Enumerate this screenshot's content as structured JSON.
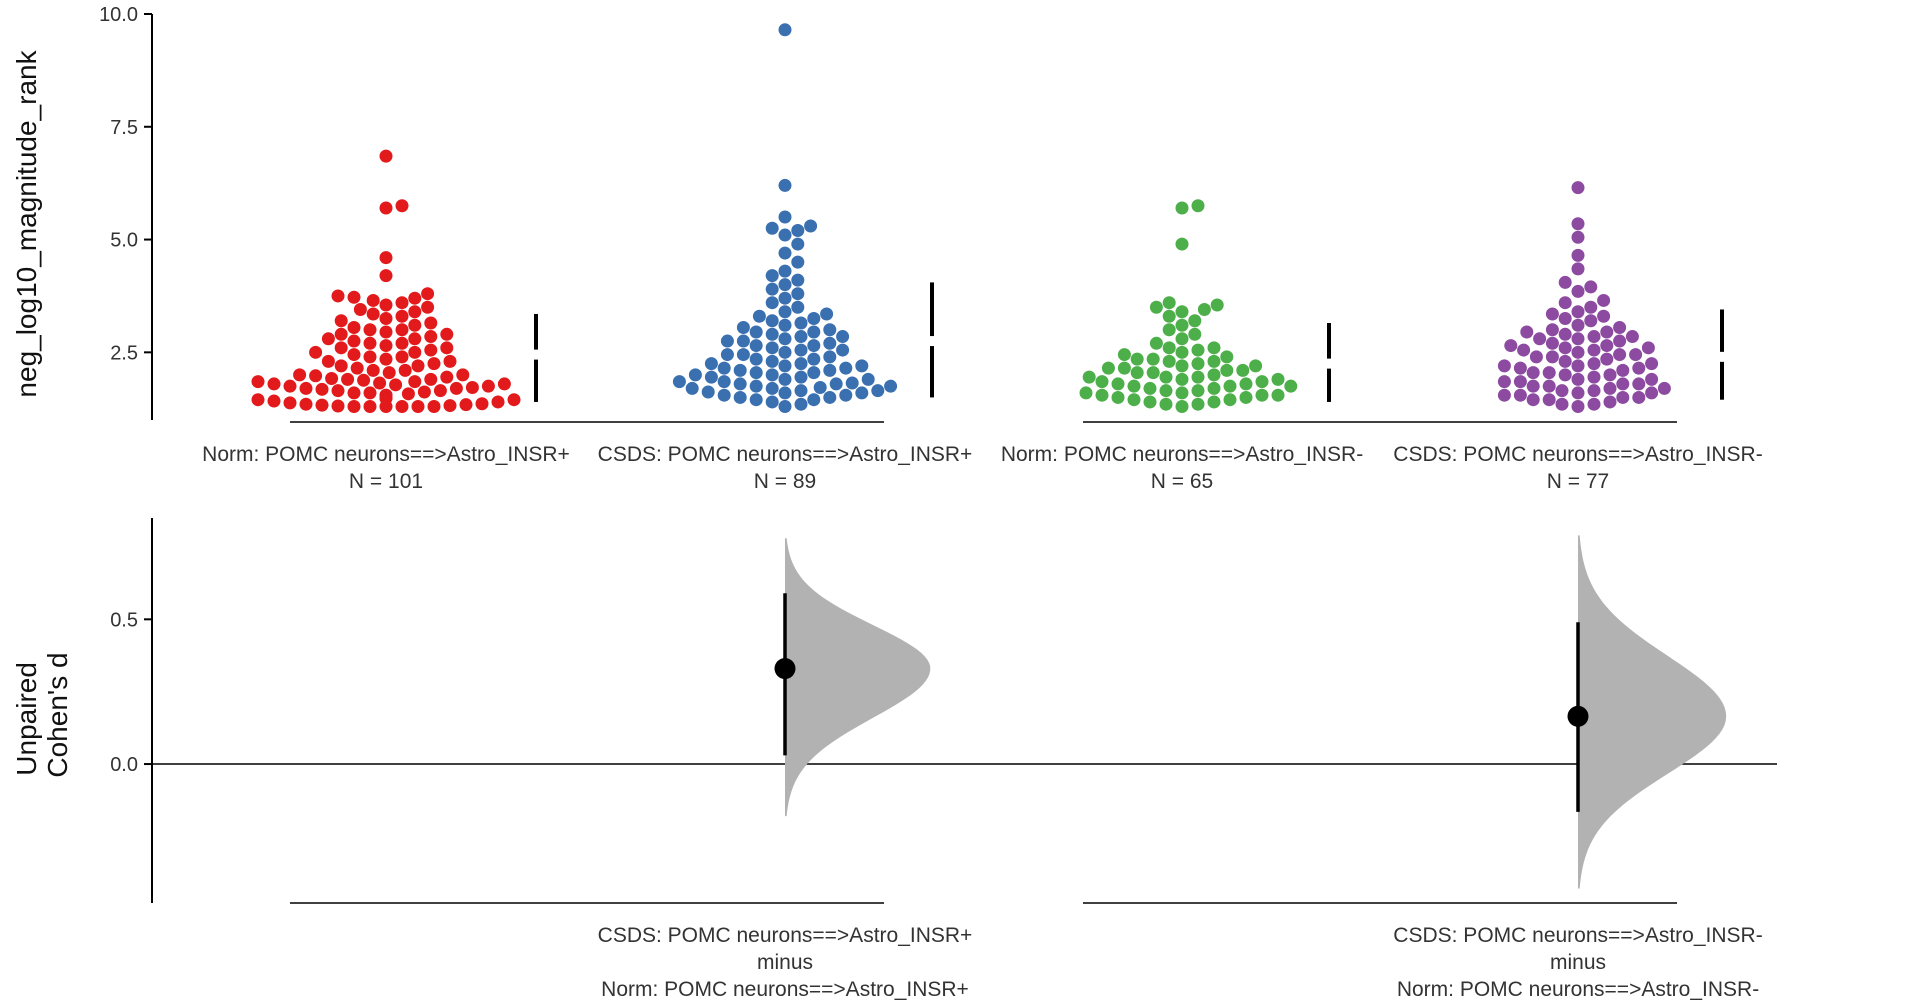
{
  "chart_data": [
    {
      "type": "scatter",
      "subtype": "swarm",
      "ylabel": "neg_log10_magnitude_rank",
      "ylim": [
        1.0,
        10.0
      ],
      "yticks": [
        2.5,
        5.0,
        7.5,
        10.0
      ],
      "ytick_labels": [
        "2.5",
        "5.0",
        "7.5",
        "10.0"
      ],
      "groups": [
        {
          "label": "Norm: POMC neurons==>Astro_INSR+",
          "n_label": "N = 101",
          "n": 101,
          "color": "#e31a1c",
          "mean": 2.45,
          "sd_low": 1.4,
          "sd_high": 3.35,
          "values": [
            6.85,
            5.75,
            5.7,
            4.6,
            4.2,
            3.8,
            3.75,
            3.72,
            3.7,
            3.65,
            3.6,
            3.55,
            3.5,
            3.45,
            3.4,
            3.35,
            3.3,
            3.25,
            3.2,
            3.15,
            3.1,
            3.05,
            3.0,
            2.95,
            2.9,
            2.85,
            2.8,
            2.75,
            2.7,
            2.65,
            2.6,
            2.55,
            2.5,
            2.45,
            2.4,
            2.35,
            2.3,
            2.25,
            2.2,
            2.15,
            2.1,
            2.05,
            2.0,
            1.98,
            1.95,
            1.92,
            1.9,
            1.88,
            1.85,
            1.82,
            1.8,
            1.78,
            1.75,
            1.72,
            1.7,
            1.68,
            1.65,
            1.62,
            1.6,
            1.58,
            1.55,
            1.52,
            1.5,
            1.48,
            1.45,
            1.42,
            1.4,
            1.38,
            1.36,
            1.35,
            1.34,
            1.33,
            1.32,
            1.31,
            1.3,
            1.3,
            1.3,
            1.3,
            1.3,
            1.3,
            2.0,
            2.2,
            2.4,
            2.6,
            2.8,
            3.0,
            1.9,
            1.7,
            1.5,
            1.6,
            1.8,
            2.1,
            2.3,
            2.5,
            2.7,
            2.9,
            1.45,
            1.55,
            1.65,
            1.75,
            1.85
          ]
        },
        {
          "label": "CSDS: POMC neurons==>Astro_INSR+",
          "n_label": "N = 89",
          "n": 89,
          "color": "#3a6fb0",
          "mean": 2.75,
          "sd_low": 1.5,
          "sd_high": 4.05,
          "values": [
            9.65,
            6.2,
            5.5,
            5.3,
            5.25,
            5.2,
            5.1,
            4.9,
            4.7,
            4.5,
            4.3,
            4.1,
            3.9,
            3.7,
            3.5,
            3.4,
            3.3,
            3.2,
            3.1,
            3.0,
            2.95,
            2.9,
            2.85,
            2.8,
            2.75,
            2.7,
            2.65,
            2.6,
            2.55,
            2.5,
            2.45,
            2.4,
            2.35,
            2.3,
            2.25,
            2.2,
            2.15,
            2.1,
            2.05,
            2.0,
            1.95,
            1.9,
            1.85,
            1.8,
            1.75,
            1.7,
            1.65,
            1.6,
            1.55,
            1.5,
            1.45,
            1.4,
            1.35,
            1.3,
            3.35,
            3.15,
            2.95,
            2.75,
            2.55,
            2.35,
            2.15,
            1.95,
            1.75,
            1.55,
            3.25,
            3.05,
            2.85,
            2.65,
            2.45,
            2.25,
            2.05,
            1.85,
            1.65,
            1.45,
            4.0,
            3.6,
            3.8,
            4.2,
            1.6,
            1.7,
            1.8,
            1.9,
            2.0,
            2.1,
            2.2,
            1.5,
            1.62,
            1.72,
            1.82
          ]
        },
        {
          "label": "Norm: POMC neurons==>Astro_INSR-",
          "n_label": "N = 65",
          "n": 65,
          "color": "#4daf4a",
          "mean": 2.25,
          "sd_low": 1.4,
          "sd_high": 3.15,
          "values": [
            5.75,
            5.7,
            4.9,
            3.6,
            3.55,
            3.5,
            3.45,
            3.4,
            3.3,
            3.2,
            3.1,
            3.0,
            2.9,
            2.8,
            2.7,
            2.6,
            2.5,
            2.45,
            2.4,
            2.35,
            2.3,
            2.25,
            2.2,
            2.15,
            2.1,
            2.05,
            2.0,
            1.95,
            1.9,
            1.85,
            1.8,
            1.75,
            1.7,
            1.65,
            1.6,
            1.55,
            1.5,
            1.45,
            1.4,
            1.35,
            1.3,
            2.55,
            2.35,
            2.15,
            1.95,
            1.75,
            1.55,
            1.4,
            2.6,
            2.2,
            1.8,
            1.6,
            1.5,
            1.7,
            1.9,
            2.1,
            2.3,
            1.65,
            1.85,
            2.05,
            1.45,
            1.55,
            1.75,
            1.95,
            1.35
          ]
        },
        {
          "label": "CSDS: POMC neurons==>Astro_INSR-",
          "n_label": "N = 77",
          "n": 77,
          "color": "#8c4aa0",
          "mean": 2.4,
          "sd_low": 1.45,
          "sd_high": 3.45,
          "values": [
            6.15,
            5.35,
            5.05,
            4.65,
            4.35,
            4.05,
            3.95,
            3.85,
            3.6,
            3.5,
            3.4,
            3.3,
            3.2,
            3.1,
            3.0,
            2.95,
            2.9,
            2.85,
            2.8,
            2.75,
            2.7,
            2.65,
            2.6,
            2.55,
            2.5,
            2.45,
            2.4,
            2.35,
            2.3,
            2.25,
            2.2,
            2.15,
            2.1,
            2.05,
            2.0,
            1.95,
            1.9,
            1.85,
            1.8,
            1.75,
            1.7,
            1.65,
            1.6,
            1.55,
            1.5,
            1.45,
            1.4,
            1.35,
            1.3,
            3.25,
            3.05,
            2.85,
            2.65,
            2.45,
            2.25,
            2.05,
            1.85,
            1.65,
            1.45,
            3.65,
            3.35,
            2.95,
            2.55,
            2.15,
            1.75,
            1.55,
            1.35,
            2.0,
            2.4,
            2.8,
            1.9,
            1.7,
            1.5,
            1.6,
            1.8,
            2.2,
            2.6
          ]
        }
      ]
    },
    {
      "type": "scatter",
      "subtype": "effect-size",
      "ylabel": "Unpaired\nCohen's d",
      "ylabel_lines": [
        "Unpaired",
        "Cohen's d"
      ],
      "ylim": [
        -0.48,
        0.85
      ],
      "yticks": [
        0.0,
        0.5
      ],
      "ytick_labels": [
        "0.0",
        "0.5"
      ],
      "reference_line": 0.0,
      "comparisons": [
        {
          "label_lines": [
            "CSDS: POMC neurons==>Astro_INSR+",
            "minus",
            "Norm: POMC neurons==>Astro_INSR+"
          ],
          "effect": 0.33,
          "ci_low": 0.03,
          "ci_high": 0.59,
          "dist_low": -0.18,
          "dist_high": 0.78,
          "dist_width": 0.51
        },
        {
          "label_lines": [
            "CSDS: POMC neurons==>Astro_INSR-",
            "minus",
            "Norm: POMC neurons==>Astro_INSR-"
          ],
          "effect": 0.165,
          "ci_low": -0.165,
          "ci_high": 0.49,
          "dist_low": -0.43,
          "dist_high": 0.79,
          "dist_width": 0.52
        }
      ]
    }
  ]
}
